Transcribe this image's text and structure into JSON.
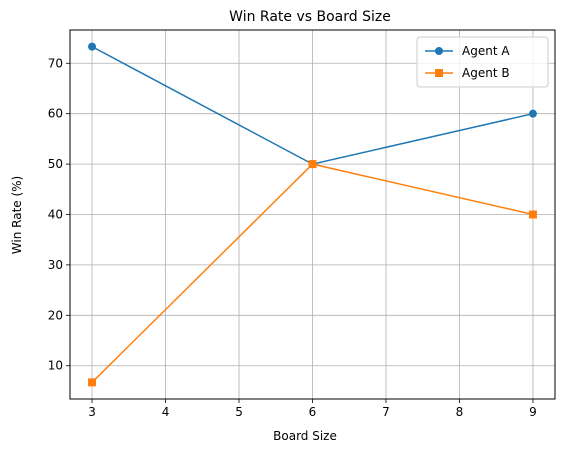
{
  "chart_data": {
    "type": "line",
    "title": "Win Rate vs Board Size",
    "xlabel": "Board Size",
    "ylabel": "Win Rate (%)",
    "x": [
      3,
      6,
      9
    ],
    "xlim": [
      2.7,
      9.3
    ],
    "ylim": [
      3.4,
      76.6
    ],
    "xticks": [
      3,
      4,
      5,
      6,
      7,
      8,
      9
    ],
    "yticks": [
      10,
      20,
      30,
      40,
      50,
      60,
      70
    ],
    "grid": true,
    "legend_position": "top-right",
    "series": [
      {
        "name": "Agent A",
        "marker": "circle",
        "color": "#1f77b4",
        "values": [
          73.3,
          50.0,
          60.0
        ]
      },
      {
        "name": "Agent B",
        "marker": "square",
        "color": "#ff7f0e",
        "values": [
          6.7,
          50.0,
          40.0
        ]
      }
    ]
  }
}
